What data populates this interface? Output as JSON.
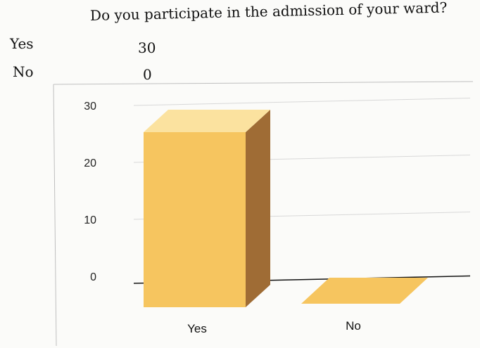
{
  "question": "Do you participate in the admission of your ward?",
  "summary_table": [
    {
      "label": "Yes",
      "value": "30"
    },
    {
      "label": "No",
      "value": "0"
    }
  ],
  "chart_data": {
    "type": "bar",
    "style": "3d",
    "title": "",
    "categories": [
      "Yes",
      "No"
    ],
    "values": [
      30,
      0
    ],
    "ylim": [
      0,
      30
    ],
    "yticks": [
      0,
      10,
      20,
      30
    ],
    "grid": true,
    "legend": false,
    "colors": {
      "front": "#f6c55f",
      "top": "#fbe29f",
      "side": "#9f6c35",
      "grid": "#d8d8d8",
      "axis": "#111111"
    }
  }
}
